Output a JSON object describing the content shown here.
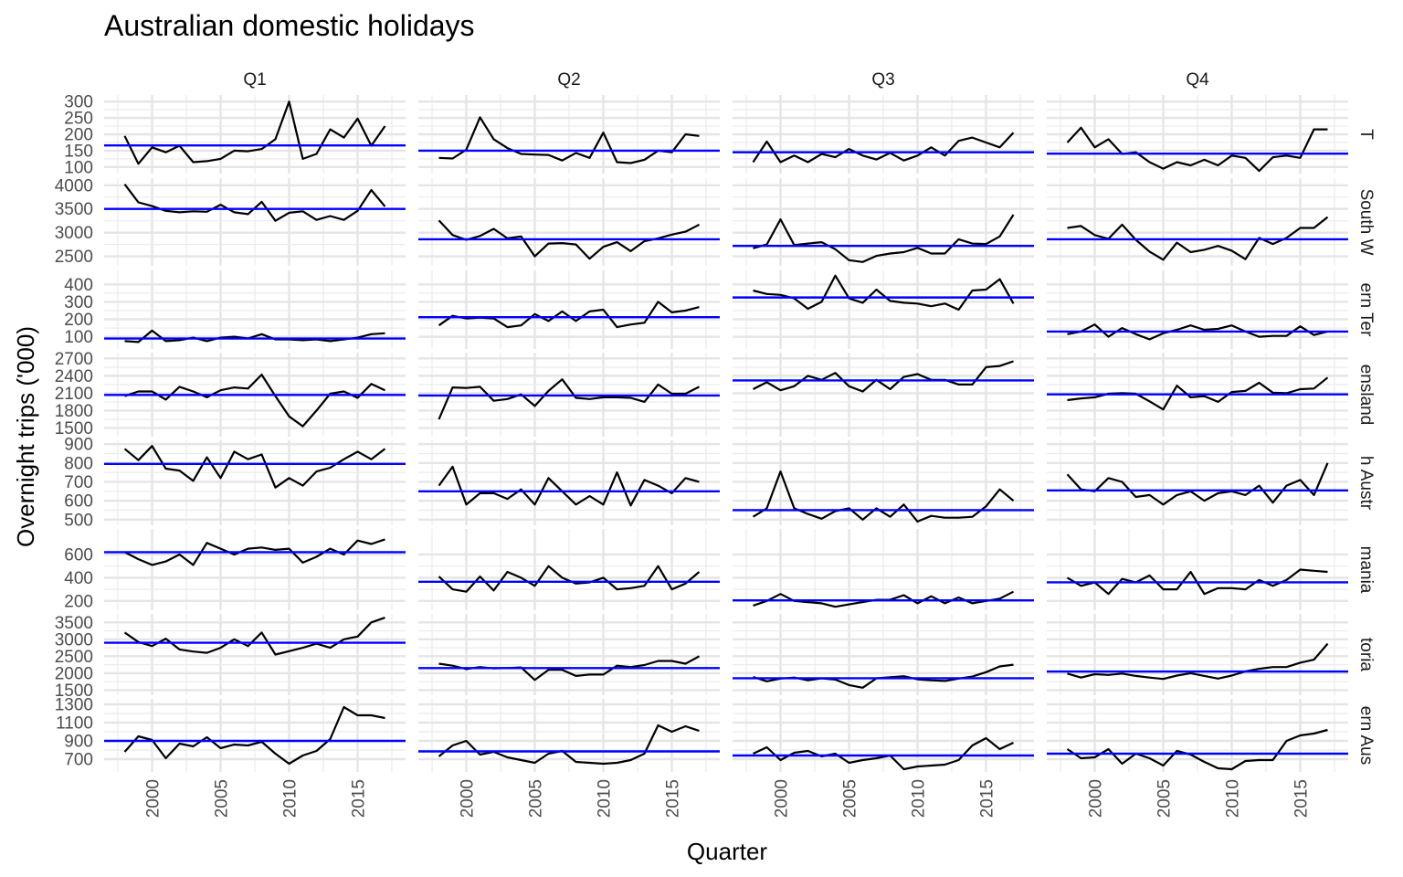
{
  "chart_data": {
    "type": "line",
    "title": "Australian domestic holidays",
    "xlabel": "Quarter",
    "ylabel": "Overnight trips ('000)",
    "facet_columns": [
      "Q1",
      "Q2",
      "Q3",
      "Q4"
    ],
    "facet_rows": [
      "T",
      "South W",
      "ern Ter",
      "ensland",
      "h Austr",
      "mania",
      "toria",
      "ern Aus"
    ],
    "years": [
      1998,
      1999,
      2000,
      2001,
      2002,
      2003,
      2004,
      2005,
      2006,
      2007,
      2008,
      2009,
      2010,
      2011,
      2012,
      2013,
      2014,
      2015,
      2016,
      2017
    ],
    "x_ticks": [
      2000,
      2005,
      2010,
      2015
    ],
    "xlim": [
      1996.5,
      2018.5
    ],
    "grid": true,
    "line_color": "#000000",
    "mean_line_color": "#0000ff",
    "panels": [
      {
        "ylim": [
          80,
          320
        ],
        "y_ticks": [
          100,
          150,
          200,
          250,
          300
        ],
        "series": [
          {
            "quarter": "Q1",
            "values": [
              195,
              110,
              160,
              145,
              165,
              115,
              118,
              125,
              150,
              148,
              155,
              185,
              300,
              125,
              140,
              215,
              190,
              248,
              165,
              225
            ],
            "mean": 166
          },
          {
            "quarter": "Q2",
            "values": [
              128,
              126,
              153,
              252,
              185,
              158,
              140,
              138,
              137,
              120,
              143,
              128,
              205,
              115,
              112,
              122,
              150,
              145,
              200,
              195
            ],
            "mean": 150
          },
          {
            "quarter": "Q3",
            "values": [
              115,
              178,
              115,
              135,
              115,
              140,
              130,
              155,
              135,
              123,
              143,
              120,
              135,
              160,
              135,
              180,
              190,
              175,
              160,
              205
            ],
            "mean": 145
          },
          {
            "quarter": "Q4",
            "values": [
              175,
              220,
              160,
              185,
              140,
              145,
              115,
              95,
              115,
              105,
              122,
              105,
              135,
              128,
              88,
              130,
              135,
              128,
              215,
              215
            ],
            "mean": 141
          }
        ]
      },
      {
        "ylim": [
          2300,
          4150
        ],
        "y_ticks": [
          2500,
          3000,
          3500,
          4000
        ],
        "series": [
          {
            "quarter": "Q1",
            "values": [
              4020,
              3640,
              3560,
              3460,
              3430,
              3450,
              3440,
              3590,
              3430,
              3390,
              3650,
              3250,
              3420,
              3450,
              3270,
              3350,
              3270,
              3460,
              3900,
              3550
            ],
            "mean": 3500
          },
          {
            "quarter": "Q2",
            "values": [
              3260,
              2950,
              2850,
              2930,
              3080,
              2880,
              2920,
              2500,
              2770,
              2780,
              2750,
              2450,
              2700,
              2800,
              2610,
              2820,
              2880,
              2960,
              3020,
              3170
            ],
            "mean": 2860
          },
          {
            "quarter": "Q3",
            "values": [
              2670,
              2750,
              3280,
              2740,
              2770,
              2800,
              2650,
              2420,
              2380,
              2510,
              2560,
              2590,
              2680,
              2560,
              2560,
              2860,
              2770,
              2760,
              2920,
              3380
            ],
            "mean": 2720
          },
          {
            "quarter": "Q4",
            "values": [
              3100,
              3140,
              2950,
              2870,
              3170,
              2850,
              2600,
              2430,
              2790,
              2590,
              2640,
              2720,
              2620,
              2440,
              2890,
              2760,
              2890,
              3100,
              3100,
              3330
            ],
            "mean": 2860
          }
        ]
      },
      {
        "ylim": [
          30,
          480
        ],
        "y_ticks": [
          100,
          200,
          300,
          400
        ],
        "series": [
          {
            "quarter": "Q1",
            "values": [
              75,
              70,
              135,
              75,
              80,
              95,
              75,
              95,
              100,
              90,
              115,
              85,
              85,
              80,
              85,
              75,
              85,
              95,
              115,
              120
            ],
            "mean": 90
          },
          {
            "quarter": "Q2",
            "values": [
              165,
              220,
              205,
              210,
              205,
              155,
              165,
              230,
              190,
              245,
              190,
              245,
              255,
              155,
              170,
              180,
              300,
              240,
              250,
              270
            ],
            "mean": 212
          },
          {
            "quarter": "Q3",
            "values": [
              365,
              345,
              340,
              320,
              260,
              300,
              450,
              320,
              295,
              370,
              305,
              295,
              290,
              275,
              290,
              255,
              365,
              370,
              430,
              290
            ],
            "mean": 325
          },
          {
            "quarter": "Q4",
            "values": [
              115,
              130,
              170,
              100,
              150,
              115,
              85,
              120,
              140,
              165,
              140,
              145,
              165,
              130,
              100,
              105,
              105,
              160,
              110,
              130
            ],
            "mean": 130
          }
        ]
      },
      {
        "ylim": [
          1350,
          2800
        ],
        "y_ticks": [
          1500,
          1800,
          2100,
          2400,
          2700
        ],
        "series": [
          {
            "quarter": "Q1",
            "values": [
              2050,
              2130,
              2130,
              1990,
              2210,
              2130,
              2030,
              2150,
              2200,
              2180,
              2420,
              2050,
              1700,
              1530,
              1800,
              2090,
              2130,
              2020,
              2260,
              2150
            ],
            "mean": 2070
          },
          {
            "quarter": "Q2",
            "values": [
              1650,
              2200,
              2190,
              2210,
              1970,
              2000,
              2080,
              1880,
              2140,
              2340,
              2020,
              2000,
              2030,
              2030,
              2020,
              1950,
              2250,
              2090,
              2090,
              2210
            ],
            "mean": 2060
          },
          {
            "quarter": "Q3",
            "values": [
              2170,
              2290,
              2150,
              2220,
              2400,
              2330,
              2450,
              2220,
              2130,
              2330,
              2170,
              2380,
              2430,
              2330,
              2330,
              2250,
              2250,
              2550,
              2570,
              2650
            ],
            "mean": 2320
          },
          {
            "quarter": "Q4",
            "values": [
              1980,
              2010,
              2030,
              2090,
              2100,
              2090,
              1960,
              1820,
              2230,
              2030,
              2050,
              1950,
              2120,
              2140,
              2280,
              2110,
              2100,
              2170,
              2180,
              2370
            ],
            "mean": 2080
          }
        ]
      },
      {
        "ylim": [
          470,
          920
        ],
        "y_ticks": [
          500,
          600,
          700,
          800,
          900
        ],
        "series": [
          {
            "quarter": "Q1",
            "values": [
              875,
              815,
              890,
              770,
              760,
              705,
              830,
              720,
              860,
              820,
              845,
              670,
              720,
              680,
              755,
              775,
              820,
              860,
              820,
              875
            ],
            "mean": 795
          },
          {
            "quarter": "Q2",
            "values": [
              680,
              780,
              580,
              640,
              640,
              610,
              660,
              580,
              720,
              650,
              580,
              625,
              580,
              750,
              575,
              710,
              680,
              640,
              720,
              700
            ],
            "mean": 650
          },
          {
            "quarter": "Q3",
            "values": [
              515,
              560,
              755,
              560,
              530,
              505,
              545,
              560,
              500,
              560,
              515,
              580,
              490,
              520,
              510,
              510,
              515,
              570,
              660,
              600
            ],
            "mean": 550
          },
          {
            "quarter": "Q4",
            "values": [
              740,
              660,
              650,
              720,
              700,
              620,
              630,
              580,
              630,
              650,
              600,
              640,
              650,
              630,
              680,
              590,
              680,
              710,
              630,
              800
            ],
            "mean": 655
          }
        ]
      },
      {
        "ylim": [
          120,
          820
        ],
        "y_ticks": [
          200,
          400,
          600
        ],
        "series": [
          {
            "quarter": "Q1",
            "values": [
              620,
              560,
              510,
              540,
              600,
              510,
              700,
              650,
              600,
              650,
              660,
              640,
              650,
              530,
              580,
              650,
              600,
              720,
              690,
              730
            ],
            "mean": 620
          },
          {
            "quarter": "Q2",
            "values": [
              410,
              300,
              280,
              410,
              290,
              450,
              400,
              330,
              500,
              400,
              350,
              360,
              400,
              300,
              310,
              330,
              500,
              300,
              350,
              450
            ],
            "mean": 365
          },
          {
            "quarter": "Q3",
            "values": [
              160,
              200,
              260,
              200,
              190,
              180,
              150,
              170,
              190,
              210,
              210,
              250,
              180,
              240,
              180,
              230,
              180,
              200,
              220,
              280
            ],
            "mean": 205
          },
          {
            "quarter": "Q4",
            "values": [
              400,
              330,
              360,
              260,
              390,
              360,
              420,
              300,
              300,
              450,
              260,
              310,
              310,
              300,
              380,
              330,
              380,
              470,
              460,
              450
            ],
            "mean": 360
          }
        ]
      },
      {
        "ylim": [
          1350,
          3750
        ],
        "y_ticks": [
          1500,
          2000,
          2500,
          3000,
          3500
        ],
        "series": [
          {
            "quarter": "Q1",
            "values": [
              3200,
              2920,
              2800,
              3020,
              2700,
              2640,
              2600,
              2750,
              3000,
              2800,
              3200,
              2550,
              2650,
              2750,
              2870,
              2750,
              3000,
              3080,
              3500,
              3640
            ],
            "mean": 2900
          },
          {
            "quarter": "Q2",
            "values": [
              2280,
              2220,
              2120,
              2180,
              2140,
              2150,
              2170,
              1800,
              2100,
              2100,
              1920,
              1960,
              1960,
              2220,
              2180,
              2240,
              2360,
              2360,
              2280,
              2500
            ],
            "mean": 2150
          },
          {
            "quarter": "Q3",
            "values": [
              1890,
              1760,
              1840,
              1870,
              1790,
              1850,
              1810,
              1650,
              1570,
              1850,
              1880,
              1910,
              1820,
              1790,
              1770,
              1840,
              1900,
              2030,
              2200,
              2250
            ],
            "mean": 1850
          },
          {
            "quarter": "Q4",
            "values": [
              1990,
              1870,
              1970,
              1950,
              1990,
              1920,
              1870,
              1830,
              1930,
              2000,
              1920,
              1840,
              1930,
              2050,
              2130,
              2180,
              2180,
              2310,
              2400,
              2870
            ],
            "mean": 2050
          }
        ]
      },
      {
        "ylim": [
          560,
          1360
        ],
        "y_ticks": [
          700,
          900,
          1100,
          1300
        ],
        "series": [
          {
            "quarter": "Q1",
            "values": [
              780,
              950,
              910,
              710,
              870,
              840,
              940,
              820,
              860,
              850,
              890,
              760,
              650,
              740,
              790,
              920,
              1270,
              1180,
              1180,
              1150
            ],
            "mean": 900
          },
          {
            "quarter": "Q2",
            "values": [
              730,
              850,
              900,
              750,
              780,
              720,
              690,
              660,
              760,
              790,
              670,
              660,
              650,
              660,
              690,
              760,
              1070,
              1000,
              1060,
              1010
            ],
            "mean": 785
          },
          {
            "quarter": "Q3",
            "values": [
              760,
              830,
              690,
              770,
              790,
              730,
              760,
              660,
              690,
              710,
              740,
              590,
              620,
              630,
              640,
              690,
              850,
              930,
              810,
              880
            ],
            "mean": 740
          },
          {
            "quarter": "Q4",
            "values": [
              810,
              710,
              720,
              810,
              650,
              760,
              710,
              630,
              790,
              750,
              670,
              600,
              590,
              680,
              690,
              690,
              900,
              960,
              980,
              1020
            ],
            "mean": 760
          }
        ]
      }
    ]
  }
}
